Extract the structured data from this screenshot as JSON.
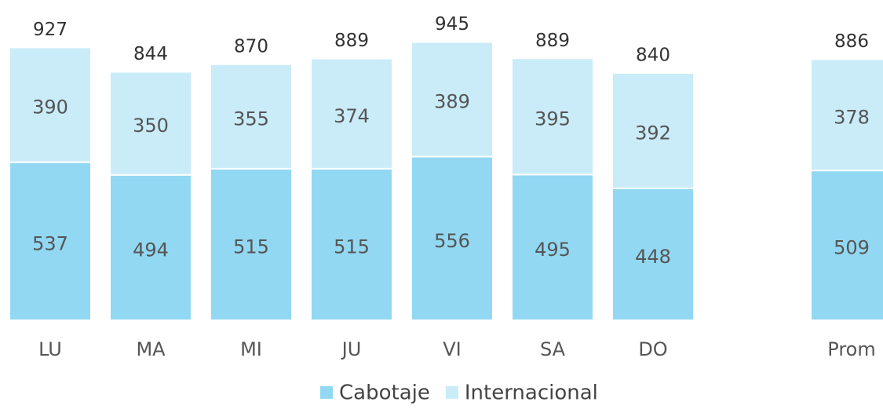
{
  "chart_data": {
    "type": "stacked_bar",
    "categories": [
      "LU",
      "MA",
      "MI",
      "JU",
      "VI",
      "SA",
      "DO",
      null,
      "Prom"
    ],
    "series": [
      {
        "name": "Cabotaje",
        "color": "#92d8f2",
        "values": [
          537,
          494,
          515,
          515,
          556,
          495,
          448,
          null,
          509
        ]
      },
      {
        "name": "Internacional",
        "color": "#c9ecf8",
        "values": [
          390,
          350,
          355,
          374,
          389,
          395,
          392,
          null,
          378
        ]
      }
    ],
    "total_labels": [
      927,
      844,
      870,
      889,
      945,
      889,
      840,
      null,
      886
    ],
    "ylim": [
      0,
      1000
    ],
    "legend": "bottom"
  }
}
